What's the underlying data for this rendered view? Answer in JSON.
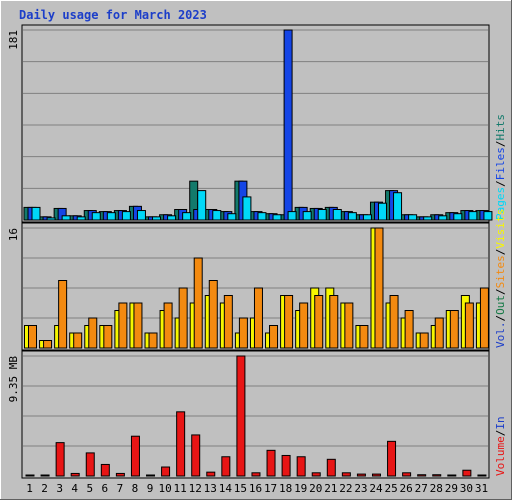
{
  "chart_data": {
    "type": "bar",
    "title": "Daily usage for March 2023",
    "categories": [
      "1",
      "2",
      "3",
      "4",
      "5",
      "6",
      "7",
      "8",
      "9",
      "10",
      "11",
      "12",
      "13",
      "14",
      "15",
      "16",
      "17",
      "18",
      "19",
      "20",
      "21",
      "22",
      "23",
      "24",
      "25",
      "26",
      "27",
      "28",
      "29",
      "30",
      "31"
    ],
    "weekend_days": [
      "4",
      "5",
      "11",
      "12",
      "18",
      "19",
      "25",
      "26"
    ],
    "colors": {
      "hits": "#137a6b",
      "files": "#1445e6",
      "pages": "#00d8f8",
      "visits": "#f7f700",
      "sites": "#f38a10",
      "kbytes": "#e81515",
      "weekend_label": "#157a45",
      "panel_bg": "#c0c0c0",
      "grid": "#808080"
    },
    "panels": [
      {
        "name": "requests",
        "max_label": "181",
        "ylim": [
          0,
          181
        ],
        "legend": [
          {
            "text": "Hits",
            "color": "#137a6b"
          },
          {
            "text": "Files",
            "color": "#1445e6"
          },
          {
            "text": "Pages",
            "color": "#00d8f8"
          }
        ],
        "series": [
          {
            "name": "Hits",
            "values": [
              12,
              3,
              11,
              4,
              9,
              8,
              9,
              13,
              3,
              5,
              10,
              37,
              10,
              8,
              37,
              8,
              6,
              5,
              12,
              11,
              12,
              8,
              5,
              17,
              28,
              5,
              3,
              5,
              7,
              9,
              9
            ]
          },
          {
            "name": "Files",
            "values": [
              12,
              3,
              11,
              4,
              9,
              8,
              9,
              13,
              3,
              5,
              10,
              10,
              10,
              8,
              37,
              8,
              6,
              181,
              12,
              11,
              12,
              8,
              5,
              17,
              28,
              5,
              3,
              5,
              7,
              9,
              9
            ]
          },
          {
            "name": "Pages",
            "values": [
              12,
              2,
              4,
              3,
              7,
              7,
              8,
              9,
              3,
              4,
              7,
              28,
              9,
              6,
              22,
              7,
              5,
              8,
              8,
              10,
              10,
              7,
              5,
              16,
              26,
              5,
              3,
              4,
              6,
              8,
              8
            ]
          }
        ]
      },
      {
        "name": "visitors",
        "max_label": "16",
        "ylim": [
          0,
          16
        ],
        "legend": [
          {
            "text": "Visits",
            "color": "#f7f700"
          },
          {
            "text": "Sites",
            "color": "#f38a10"
          },
          {
            "text": "Out",
            "color": "#157a45"
          },
          {
            "text": "Vol.",
            "color": "#1c3ec9"
          }
        ],
        "series": [
          {
            "name": "Visits",
            "values": [
              3,
              1,
              3,
              2,
              3,
              3,
              5,
              6,
              2,
              5,
              4,
              6,
              7,
              6,
              2,
              4,
              2,
              7,
              5,
              8,
              8,
              6,
              3,
              16,
              6,
              4,
              2,
              3,
              5,
              7,
              6
            ]
          },
          {
            "name": "Sites",
            "values": [
              3,
              1,
              9,
              2,
              4,
              3,
              6,
              6,
              2,
              6,
              8,
              12,
              9,
              7,
              4,
              8,
              3,
              7,
              6,
              7,
              7,
              6,
              3,
              16,
              7,
              5,
              2,
              4,
              5,
              6,
              8
            ]
          }
        ]
      },
      {
        "name": "volume",
        "max_label": "9.35 MB",
        "ylim": [
          0,
          9.35
        ],
        "legend": [
          {
            "text": "In",
            "color": "#1c3ec9"
          },
          {
            "text": "Volume",
            "color": "#e81515"
          }
        ],
        "series": [
          {
            "name": "Volume",
            "values": [
              0.05,
              0.05,
              2.6,
              0.2,
              1.8,
              0.9,
              0.2,
              3.1,
              0.05,
              0.7,
              5.0,
              3.2,
              0.3,
              1.5,
              9.35,
              0.25,
              2.0,
              1.6,
              1.5,
              0.25,
              1.3,
              0.25,
              0.15,
              0.15,
              2.7,
              0.25,
              0.1,
              0.1,
              0.05,
              0.45,
              0.05
            ]
          }
        ]
      }
    ]
  }
}
